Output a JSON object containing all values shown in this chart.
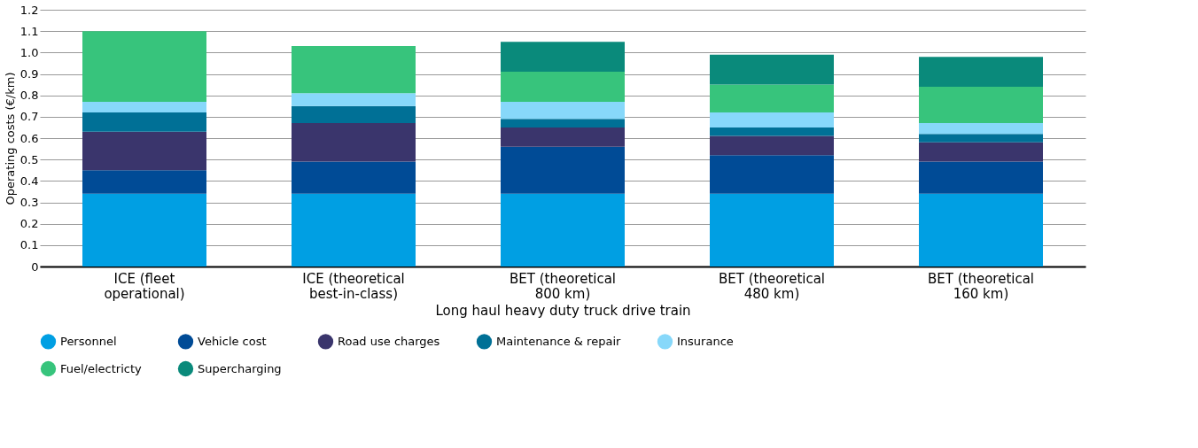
{
  "chart_data": {
    "type": "bar",
    "stacked": true,
    "xlabel": "Long haul heavy duty truck drive train",
    "ylabel": "Operating costs (€/km)",
    "categories": [
      "ICE (fleet\noperational)",
      "ICE (theoretical\nbest-in-class)",
      "BET (theoretical\n800 km)",
      "BET (theoretical\n480 km)",
      "BET (theoretical\n160 km)"
    ],
    "series": [
      {
        "name": "Personnel",
        "color": "#009fe3",
        "values": [
          0.34,
          0.34,
          0.34,
          0.34,
          0.34
        ]
      },
      {
        "name": "Vehicle cost",
        "color": "#004b96",
        "values": [
          0.11,
          0.15,
          0.22,
          0.18,
          0.15
        ]
      },
      {
        "name": "Road use charges",
        "color": "#3a356c",
        "values": [
          0.18,
          0.18,
          0.09,
          0.09,
          0.09
        ]
      },
      {
        "name": "Maintenance & repair",
        "color": "#007096",
        "values": [
          0.09,
          0.08,
          0.04,
          0.04,
          0.04
        ]
      },
      {
        "name": "Insurance",
        "color": "#87d8fa",
        "values": [
          0.05,
          0.06,
          0.08,
          0.07,
          0.05
        ]
      },
      {
        "name": "Fuel/electricty",
        "color": "#37c47c",
        "values": [
          0.33,
          0.22,
          0.14,
          0.13,
          0.17
        ]
      },
      {
        "name": "Supercharging",
        "color": "#0a8a7b",
        "values": [
          null,
          null,
          0.14,
          0.14,
          0.14
        ]
      }
    ],
    "ylim": [
      0,
      1.2
    ],
    "yticks": [
      0,
      0.1,
      0.2,
      0.3,
      0.4,
      0.5,
      0.6,
      0.7,
      0.8,
      0.9,
      {
        "value": 1.0,
        "label": "1.0"
      },
      1.1,
      1.2
    ],
    "grid": "y",
    "legend": "bottom"
  }
}
